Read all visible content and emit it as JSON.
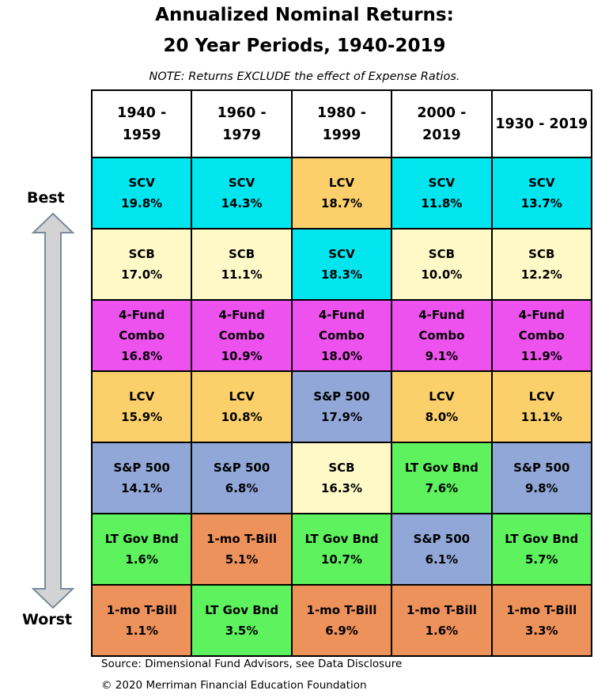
{
  "title_line1": "Annualized Nominal Returns:",
  "title_line2": "20 Year Periods, 1940-2019",
  "note": "NOTE: Returns EXCLUDE the effect of Expense Ratios.",
  "best_label": "Best",
  "worst_label": "Worst",
  "source": "Source: Dimensional Fund Advisors, see Data Disclosure",
  "copyright": "© 2020 Merriman Financial Education Foundation",
  "colors": {
    "SCV": "#00e5ee",
    "SCB": "#fff9c7",
    "4-Fund Combo": "#ee52ee",
    "LCV": "#fbd06b",
    "S&P 500": "#91a7d7",
    "LT Gov Bnd": "#5ef25e",
    "1-mo T-Bill": "#ee925c"
  },
  "chart_data": {
    "type": "table",
    "title": "Annualized Nominal Returns: 20 Year Periods, 1940-2019",
    "columns": [
      {
        "label_lines": [
          "1940 -",
          "1959"
        ],
        "ranked": [
          {
            "asset": [
              "SCV"
            ],
            "value": "19.8%"
          },
          {
            "asset": [
              "SCB"
            ],
            "value": "17.0%"
          },
          {
            "asset": [
              "4-Fund",
              "Combo"
            ],
            "value": "16.8%"
          },
          {
            "asset": [
              "LCV"
            ],
            "value": "15.9%"
          },
          {
            "asset": [
              "S&P 500"
            ],
            "value": "14.1%"
          },
          {
            "asset": [
              "LT Gov Bnd"
            ],
            "value": "1.6%"
          },
          {
            "asset": [
              "1-mo T-Bill"
            ],
            "value": "1.1%"
          }
        ]
      },
      {
        "label_lines": [
          "1960 -",
          "1979"
        ],
        "ranked": [
          {
            "asset": [
              "SCV"
            ],
            "value": "14.3%"
          },
          {
            "asset": [
              "SCB"
            ],
            "value": "11.1%"
          },
          {
            "asset": [
              "4-Fund",
              "Combo"
            ],
            "value": "10.9%"
          },
          {
            "asset": [
              "LCV"
            ],
            "value": "10.8%"
          },
          {
            "asset": [
              "S&P 500"
            ],
            "value": "6.8%"
          },
          {
            "asset": [
              "1-mo T-Bill"
            ],
            "value": "5.1%"
          },
          {
            "asset": [
              "LT Gov Bnd"
            ],
            "value": "3.5%"
          }
        ]
      },
      {
        "label_lines": [
          "1980 -",
          "1999"
        ],
        "ranked": [
          {
            "asset": [
              "LCV"
            ],
            "value": "18.7%"
          },
          {
            "asset": [
              "SCV"
            ],
            "value": "18.3%"
          },
          {
            "asset": [
              "4-Fund",
              "Combo"
            ],
            "value": "18.0%"
          },
          {
            "asset": [
              "S&P 500"
            ],
            "value": "17.9%"
          },
          {
            "asset": [
              "SCB"
            ],
            "value": "16.3%"
          },
          {
            "asset": [
              "LT Gov Bnd"
            ],
            "value": "10.7%"
          },
          {
            "asset": [
              "1-mo T-Bill"
            ],
            "value": "6.9%"
          }
        ]
      },
      {
        "label_lines": [
          "2000 -",
          "2019"
        ],
        "ranked": [
          {
            "asset": [
              "SCV"
            ],
            "value": "11.8%"
          },
          {
            "asset": [
              "SCB"
            ],
            "value": "10.0%"
          },
          {
            "asset": [
              "4-Fund",
              "Combo"
            ],
            "value": "9.1%"
          },
          {
            "asset": [
              "LCV"
            ],
            "value": "8.0%"
          },
          {
            "asset": [
              "LT Gov Bnd"
            ],
            "value": "7.6%"
          },
          {
            "asset": [
              "S&P 500"
            ],
            "value": "6.1%"
          },
          {
            "asset": [
              "1-mo T-Bill"
            ],
            "value": "1.6%"
          }
        ]
      },
      {
        "label_lines": [
          "1930 - 2019"
        ],
        "ranked": [
          {
            "asset": [
              "SCV"
            ],
            "value": "13.7%"
          },
          {
            "asset": [
              "SCB"
            ],
            "value": "12.2%"
          },
          {
            "asset": [
              "4-Fund",
              "Combo"
            ],
            "value": "11.9%"
          },
          {
            "asset": [
              "LCV"
            ],
            "value": "11.1%"
          },
          {
            "asset": [
              "S&P 500"
            ],
            "value": "9.8%"
          },
          {
            "asset": [
              "LT Gov Bnd"
            ],
            "value": "5.7%"
          },
          {
            "asset": [
              "1-mo T-Bill"
            ],
            "value": "3.3%"
          }
        ]
      }
    ]
  }
}
